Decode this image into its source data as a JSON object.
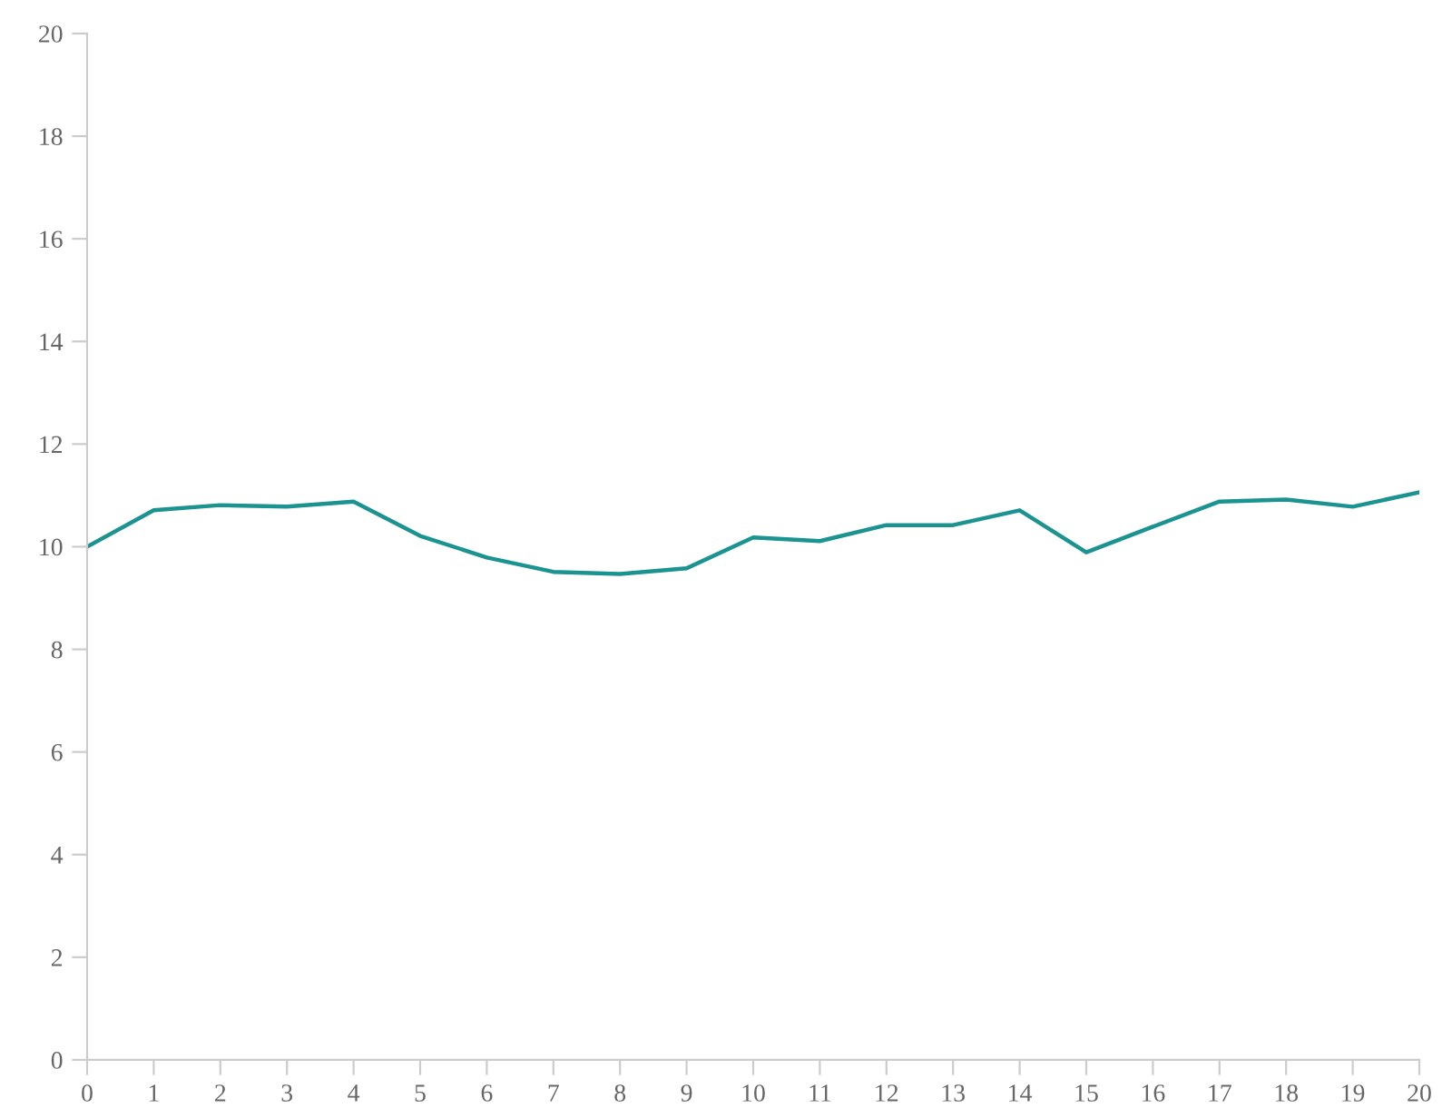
{
  "chart_data": {
    "type": "line",
    "x": [
      0,
      1,
      2,
      3,
      4,
      5,
      6,
      7,
      8,
      9,
      10,
      11,
      12,
      13,
      14,
      15,
      16,
      17,
      18,
      19,
      20
    ],
    "series": [
      {
        "color": "#1a9391",
        "values": [
          10.0,
          10.71,
          10.81,
          10.78,
          10.88,
          10.21,
          9.79,
          9.51,
          9.47,
          9.58,
          10.18,
          10.11,
          10.42,
          10.42,
          10.71,
          9.89,
          10.39,
          10.88,
          10.92,
          10.78,
          11.06
        ]
      }
    ],
    "xlim": [
      0,
      20
    ],
    "xticks": [
      0,
      1,
      2,
      3,
      4,
      5,
      6,
      7,
      8,
      9,
      10,
      11,
      12,
      13,
      14,
      15,
      16,
      17,
      18,
      19,
      20
    ],
    "ylim": [
      0,
      20
    ],
    "yticks": [
      0,
      2,
      4,
      6,
      8,
      10,
      12,
      14,
      16,
      18,
      20
    ],
    "grid": false,
    "legend": false,
    "marker": "none",
    "line_style": "solid"
  }
}
